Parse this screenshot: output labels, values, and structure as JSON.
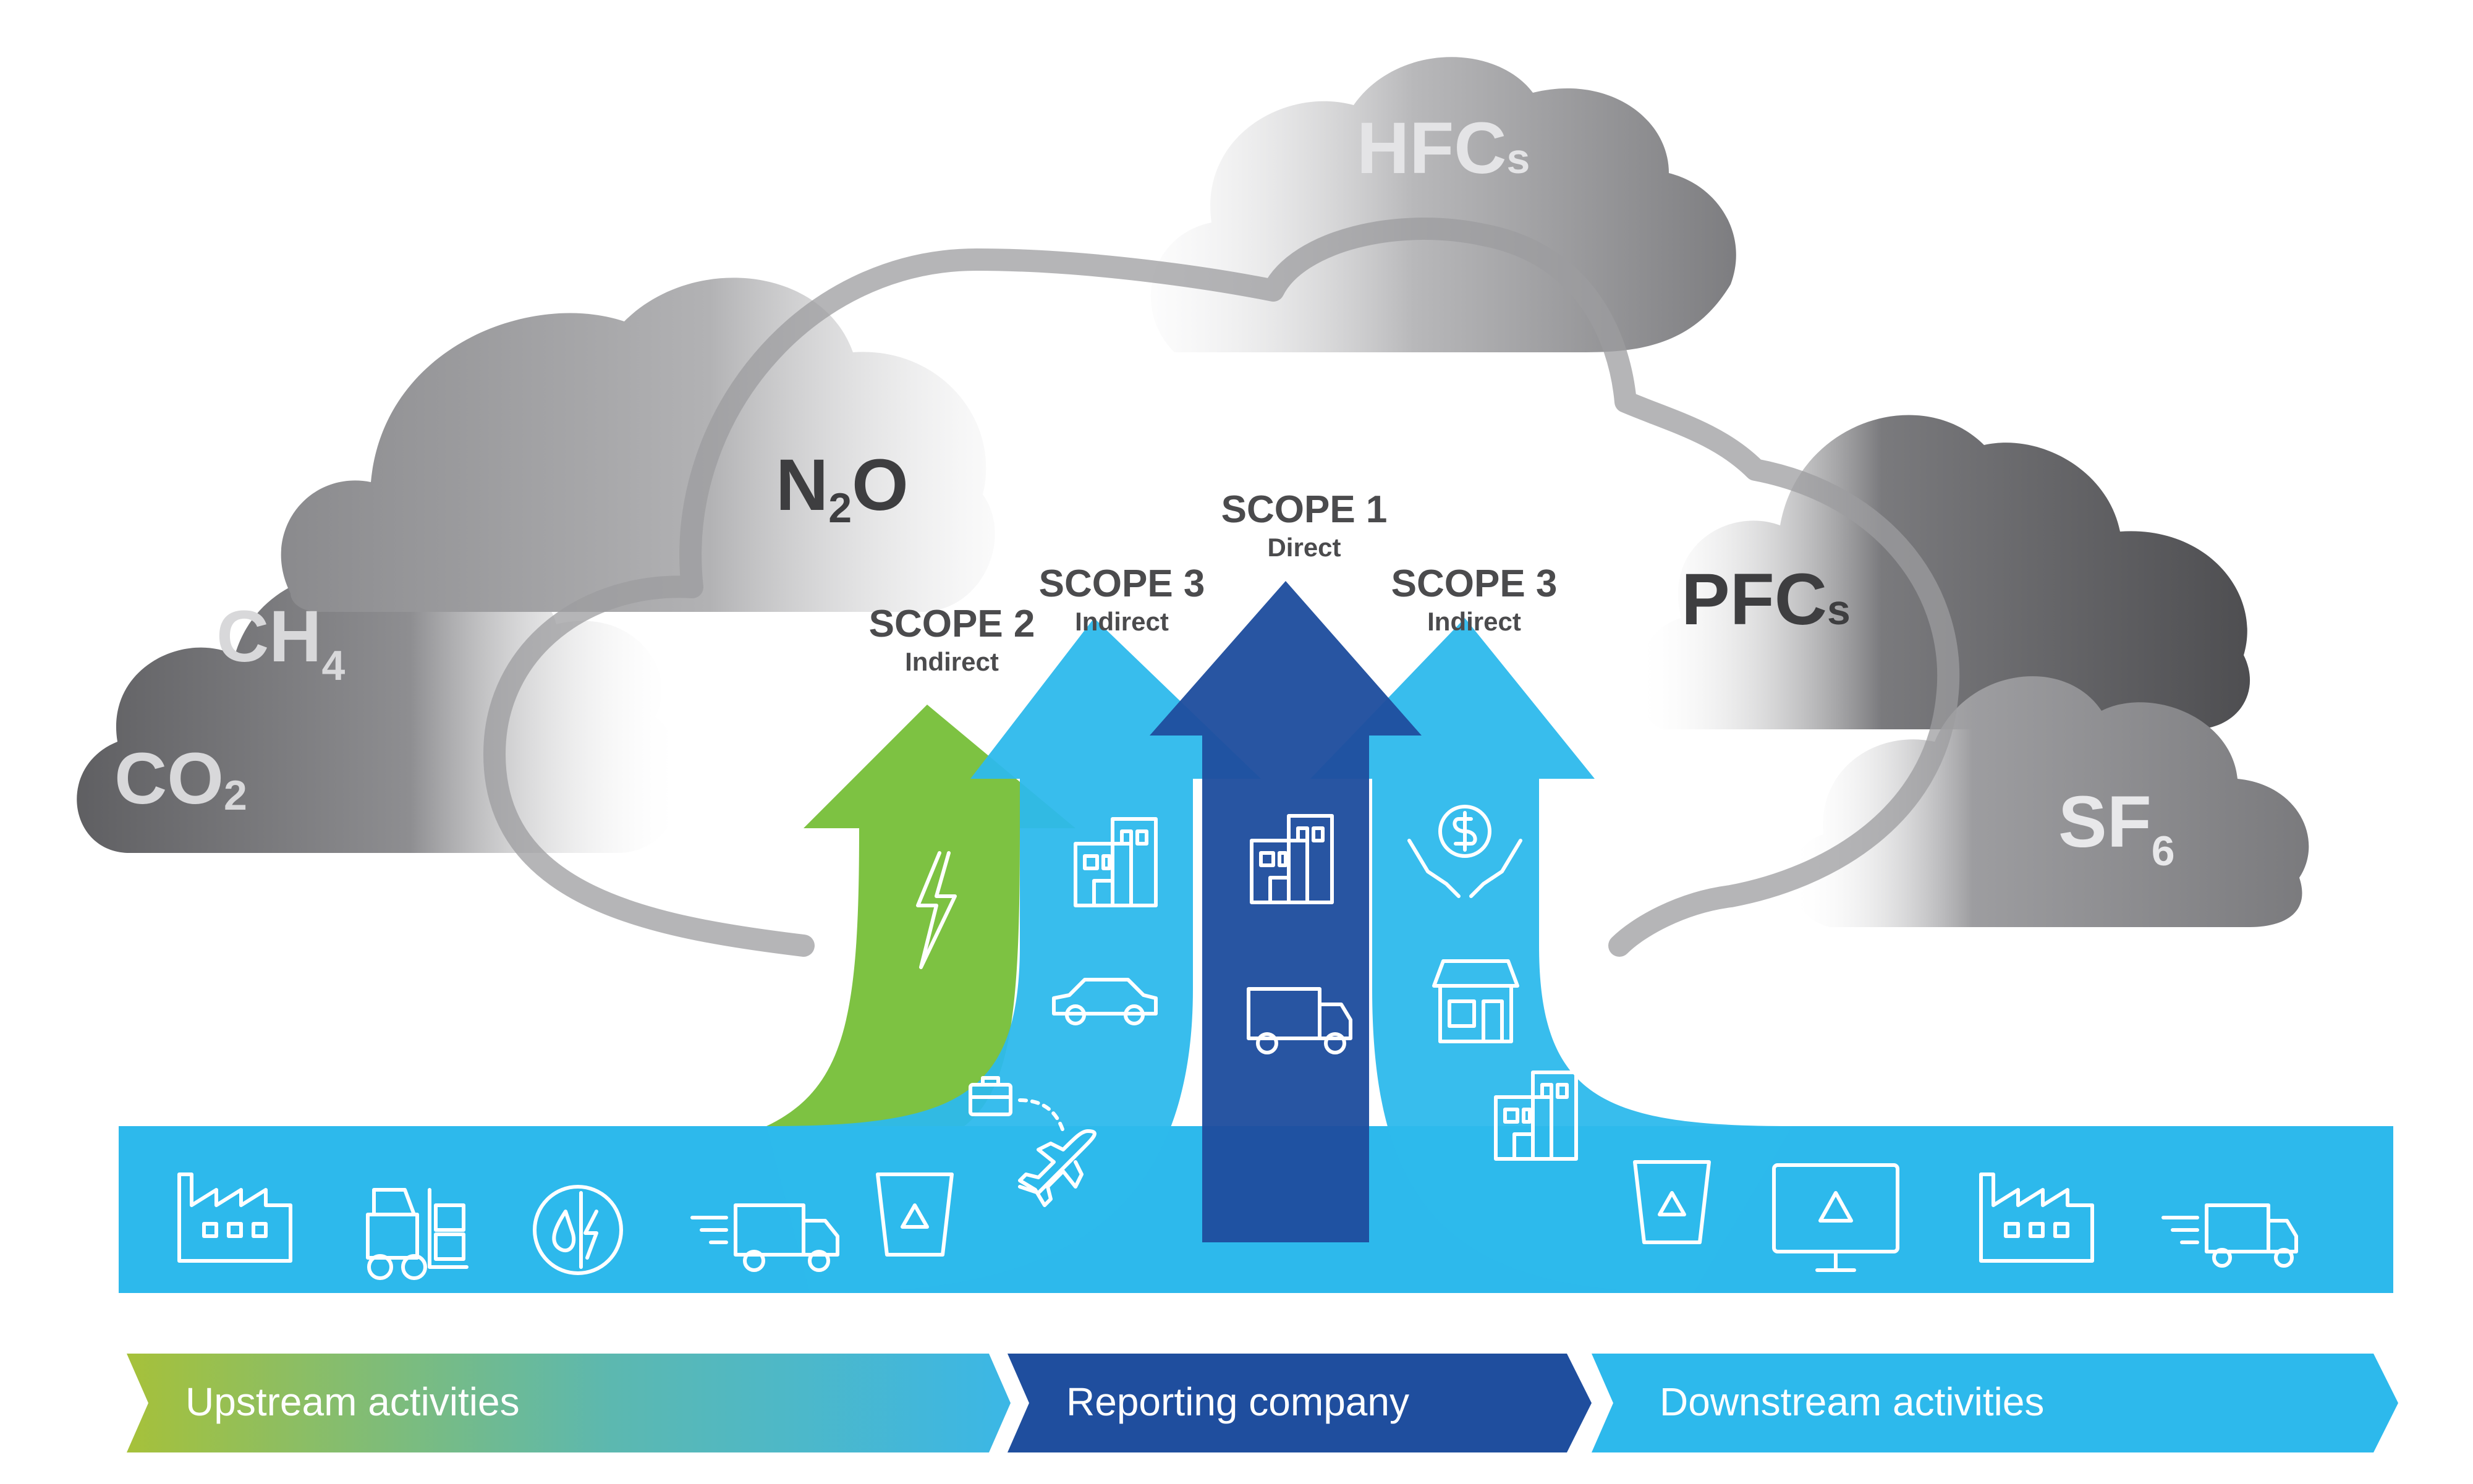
{
  "gases": {
    "co2": {
      "main": "CO",
      "sub": "2"
    },
    "ch4": {
      "main": "CH",
      "sub": "4"
    },
    "n2o": {
      "pre": "N",
      "sub": "2",
      "post": "O"
    },
    "hfcs": {
      "main": "HFC",
      "sub": "s"
    },
    "pfcs": {
      "main": "PFC",
      "sub": "s"
    },
    "sf6": {
      "main": "SF",
      "sub": "6"
    }
  },
  "scopes": {
    "scope1": {
      "title": "SCOPE 1",
      "subtitle": "Direct"
    },
    "scope2": {
      "title": "SCOPE 2",
      "subtitle": "Indirect"
    },
    "scope3_upstream": {
      "title": "SCOPE 3",
      "subtitle": "Indirect"
    },
    "scope3_downstream": {
      "title": "SCOPE 3",
      "subtitle": "Indirect"
    }
  },
  "bands": {
    "upstream": "Upstream activities",
    "reporting": "Reporting company",
    "downstream": "Downstream activities"
  },
  "colors": {
    "scope1_arrow": "#1f4e9e",
    "scope2_arrow": "#7dc242",
    "scope3_arrow": "#2db9ec",
    "cloud_dark": "#6b6b6e",
    "cloud_light": "#cfcfd1",
    "upstream_gradient_start": "#a6c13a",
    "upstream_gradient_end": "#3bb7e6",
    "reporting_band": "#1f4e9e",
    "downstream_band": "#2db9ec"
  },
  "icons": [
    "factory-icon",
    "forklift-icon",
    "water-energy-icon",
    "delivery-truck-icon",
    "recycle-bin-icon",
    "airplane-icon",
    "briefcase-icon",
    "car-icon",
    "office-building-icon",
    "lightning-icon",
    "truck-icon",
    "money-hands-icon",
    "store-icon",
    "monitor-recycle-icon"
  ]
}
